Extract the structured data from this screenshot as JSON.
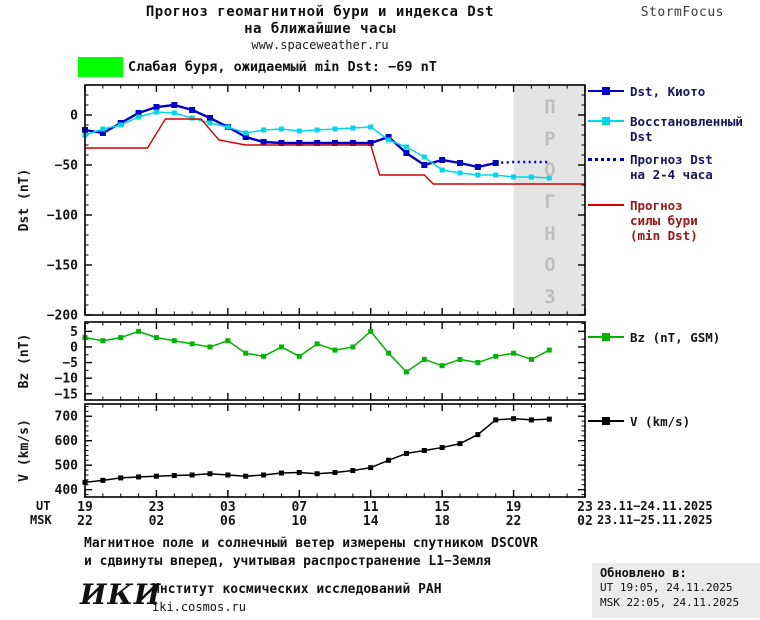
{
  "header": {
    "title_line1": "Прогноз геомагнитной бури и индекса Dst",
    "title_line2": "на ближайшие часы",
    "site": "www.spaceweather.ru",
    "brand": "StormFocus"
  },
  "alert": {
    "text": "Слабая буря, ожидаемый min Dst: −69 nT",
    "color": "#00ff00"
  },
  "colors": {
    "forecast_bg": "#e4e4e4",
    "forecast_text": "#bfbfbf",
    "frame": "#000000"
  },
  "chart_data": [
    {
      "type": "line",
      "name": "dst",
      "ylabel": "Dst (nT)",
      "ylim": [
        -200,
        30
      ],
      "yticks": [
        0,
        -50,
        -100,
        -150,
        -200
      ],
      "yminor_step": 10,
      "xlim": [
        0,
        28
      ],
      "xticks": [
        0,
        4,
        8,
        12,
        16,
        20,
        24,
        28
      ],
      "x_unit": "hours since 23.11.2025 19:00 UT",
      "forecast_region": [
        24,
        28
      ],
      "forecast_label": "ПРОГНОЗ",
      "series": [
        {
          "name": "Dst, Киото",
          "color": "#0000cc",
          "style": "solid",
          "marker": "square",
          "marker_size": 6,
          "width": 2.4,
          "x": [
            0,
            1,
            2,
            3,
            4,
            5,
            6,
            7,
            8,
            9,
            10,
            11,
            12,
            13,
            14,
            15,
            16,
            17,
            18,
            19,
            20,
            21,
            22,
            23
          ],
          "values": [
            -15,
            -18,
            -8,
            2,
            8,
            10,
            5,
            -3,
            -12,
            -22,
            -27,
            -28,
            -28,
            -28,
            -28,
            -28,
            -28,
            -22,
            -38,
            -50,
            -45,
            -48,
            -52,
            -48
          ]
        },
        {
          "name": "Восстановленный Dst",
          "color": "#00d8e8",
          "style": "solid",
          "marker": "square",
          "marker_size": 5,
          "width": 1.5,
          "x": [
            0,
            1,
            2,
            3,
            4,
            5,
            6,
            7,
            8,
            9,
            10,
            11,
            12,
            13,
            14,
            15,
            16,
            17,
            18,
            19,
            20,
            21,
            22,
            23,
            24,
            25,
            26
          ],
          "values": [
            -20,
            -14,
            -10,
            -2,
            3,
            2,
            -3,
            -8,
            -12,
            -18,
            -15,
            -14,
            -16,
            -15,
            -14,
            -13,
            -12,
            -25,
            -32,
            -42,
            -55,
            -58,
            -60,
            -60,
            -62,
            -62,
            -63
          ]
        },
        {
          "name": "Прогноз Dst на 2-4 часа",
          "color": "#0000cc",
          "style": "dotted",
          "marker": "none",
          "width": 2.6,
          "x": [
            23,
            24,
            25,
            26
          ],
          "values": [
            -48,
            -47,
            -47,
            -47
          ]
        },
        {
          "name": "Прогноз силы бури (min Dst)",
          "color": "#d40000",
          "style": "solid",
          "marker": "none",
          "width": 1.4,
          "x": [
            0,
            3.5,
            4.5,
            6.5,
            7.5,
            9,
            16,
            16.5,
            19,
            19.5,
            28
          ],
          "values": [
            -33,
            -33,
            -4,
            -4,
            -25,
            -30,
            -30,
            -60,
            -60,
            -69,
            -69
          ]
        }
      ]
    },
    {
      "type": "line",
      "name": "bz",
      "ylabel": "Bz (nT)",
      "ylim": [
        -17,
        8
      ],
      "yticks": [
        5,
        0,
        -5,
        -10,
        -15
      ],
      "yminor_step": 2.5,
      "xlim": [
        0,
        28
      ],
      "xticks": [
        0,
        4,
        8,
        12,
        16,
        20,
        24,
        28
      ],
      "series": [
        {
          "name": "Bz (nT, GSM)",
          "color": "#00b400",
          "style": "solid",
          "marker": "square",
          "marker_size": 5,
          "width": 1.5,
          "x": [
            0,
            1,
            2,
            3,
            4,
            5,
            6,
            7,
            8,
            9,
            10,
            11,
            12,
            13,
            14,
            15,
            16,
            17,
            18,
            19,
            20,
            21,
            22,
            23,
            24,
            25,
            26
          ],
          "values": [
            3,
            2,
            3,
            5,
            3,
            2,
            1,
            0,
            2,
            -2,
            -3,
            0,
            -3,
            1,
            -1,
            0,
            5,
            -2,
            -8,
            -4,
            -6,
            -4,
            -5,
            -3,
            -2,
            -4,
            -1
          ]
        }
      ]
    },
    {
      "type": "line",
      "name": "v",
      "ylabel": "V (km/s)",
      "ylim": [
        370,
        750
      ],
      "yticks": [
        400,
        500,
        600,
        700
      ],
      "yminor_step": 20,
      "xlim": [
        0,
        28
      ],
      "xticks": [
        0,
        4,
        8,
        12,
        16,
        20,
        24,
        28
      ],
      "series": [
        {
          "name": "V (km/s)",
          "color": "#000000",
          "style": "solid",
          "marker": "square",
          "marker_size": 5,
          "width": 1.5,
          "x": [
            0,
            1,
            2,
            3,
            4,
            5,
            6,
            7,
            8,
            9,
            10,
            11,
            12,
            13,
            14,
            15,
            16,
            17,
            18,
            19,
            20,
            21,
            22,
            23,
            24,
            25,
            26
          ],
          "values": [
            430,
            438,
            448,
            452,
            455,
            458,
            460,
            465,
            460,
            455,
            460,
            468,
            470,
            465,
            470,
            478,
            490,
            520,
            548,
            560,
            572,
            588,
            625,
            685,
            690,
            685,
            688
          ]
        }
      ]
    }
  ],
  "legend": {
    "dst_kyoto": {
      "label": "Dst, Киото",
      "text_color": "#16165e"
    },
    "restored": {
      "label": "Восстановленный\nDst",
      "text_color": "#16165e"
    },
    "forecast": {
      "label": "Прогноз Dst\nна 2-4 часа",
      "text_color": "#16165e"
    },
    "storm": {
      "label": "Прогноз\nсилы бури\n(min Dst)",
      "text_color": "#a01616"
    },
    "bz": {
      "label": "Bz (nT, GSM)",
      "text_color": "#141414"
    },
    "v": {
      "label": "V (km/s)",
      "text_color": "#141414"
    }
  },
  "xaxis": {
    "ut_label": "UT",
    "msk_label": "MSK",
    "ut_ticks": [
      "19",
      "23",
      "03",
      "07",
      "11",
      "15",
      "19",
      "23"
    ],
    "msk_ticks": [
      "22",
      "02",
      "06",
      "10",
      "14",
      "18",
      "22",
      "02"
    ],
    "ut_dates": "23.11−24.11.2025",
    "msk_dates": "23.11−25.11.2025"
  },
  "footer": {
    "note_line1": "Магнитное поле и солнечный ветер измерены спутником DSCOVR",
    "note_line2": "и сдвинуты вперед, учитывая распространение L1−Земля",
    "logo": "ИКИ",
    "institute": "Институт космических исследований РАН",
    "site": "iki.cosmos.ru",
    "updated_label": "Обновлено в:",
    "updated_ut": "UT  19:05, 24.11.2025",
    "updated_msk": "MSK 22:05, 24.11.2025"
  }
}
